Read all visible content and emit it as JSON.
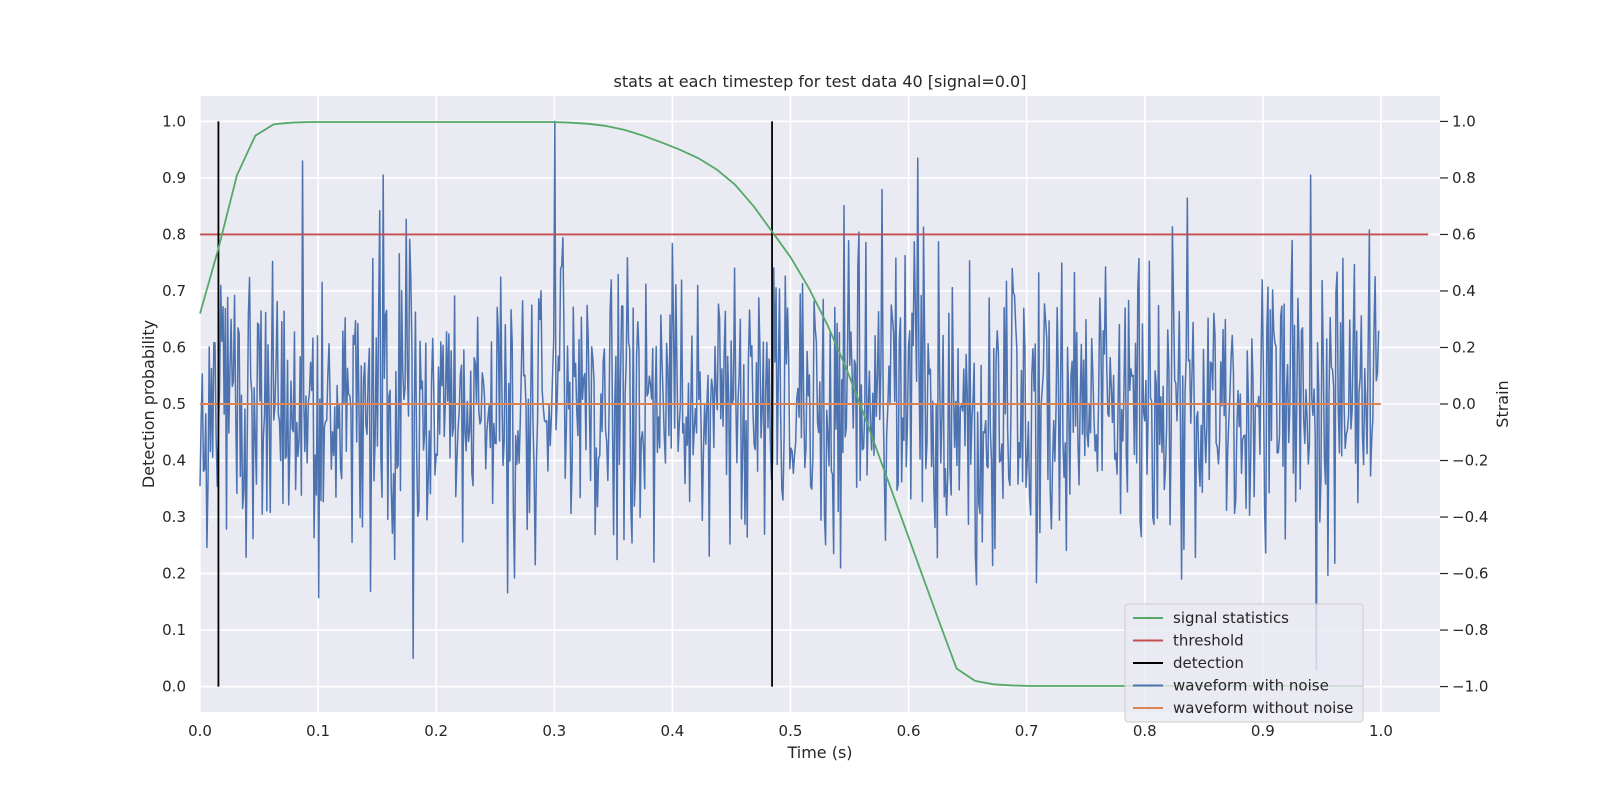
{
  "chart_data": {
    "type": "line",
    "title": "stats at each timestep for test data 40 [signal=0.0]",
    "xlabel": "Time (s)",
    "ylabel_left": "Detection probability",
    "ylabel_right": "Strain",
    "xlim": [
      0.0,
      1.05
    ],
    "ylim_left": [
      -0.045,
      1.045
    ],
    "ylim_right": [
      -1.09,
      1.09
    ],
    "x_ticks": [
      "0.0",
      "0.1",
      "0.2",
      "0.3",
      "0.4",
      "0.5",
      "0.6",
      "0.7",
      "0.8",
      "0.9",
      "1.0"
    ],
    "y_left_ticks": [
      "0.0",
      "0.1",
      "0.2",
      "0.3",
      "0.4",
      "0.5",
      "0.6",
      "0.7",
      "0.8",
      "0.9",
      "1.0"
    ],
    "y_right_ticks": [
      "−1.0",
      "−0.8",
      "−0.6",
      "−0.4",
      "−0.2",
      "0.0",
      "0.2",
      "0.4",
      "0.6",
      "0.8",
      "1.0"
    ],
    "grid": true,
    "legend_position": "lower-right",
    "series": [
      {
        "name": "signal statistics",
        "color": "#55a868",
        "axis": "left",
        "x": [
          0.0,
          0.0156,
          0.0313,
          0.0469,
          0.0625,
          0.0781,
          0.0938,
          0.1094,
          0.125,
          0.1406,
          0.1563,
          0.1719,
          0.1875,
          0.2031,
          0.2188,
          0.2344,
          0.25,
          0.2656,
          0.2813,
          0.2969,
          0.3125,
          0.3281,
          0.3438,
          0.3594,
          0.375,
          0.3906,
          0.4063,
          0.4219,
          0.4375,
          0.4531,
          0.4688,
          0.4844,
          0.5,
          0.5156,
          0.5313,
          0.5469,
          0.5625,
          0.5781,
          0.5938,
          0.6094,
          0.625,
          0.6406,
          0.6563,
          0.6719,
          0.6875,
          0.7031,
          0.7188,
          0.7344,
          0.75,
          0.7656,
          0.7813,
          0.7969,
          0.8125,
          0.8281,
          0.8438,
          0.8594,
          0.875,
          0.8906,
          0.9063,
          0.9219,
          0.9375,
          0.9531,
          0.9688,
          0.9844
        ],
        "values": [
          0.66,
          0.775,
          0.905,
          0.975,
          0.995,
          0.998,
          0.999,
          0.999,
          0.999,
          0.999,
          0.999,
          0.999,
          0.999,
          0.999,
          0.999,
          0.999,
          0.999,
          0.999,
          0.999,
          0.999,
          0.998,
          0.996,
          0.992,
          0.985,
          0.975,
          0.963,
          0.95,
          0.935,
          0.915,
          0.888,
          0.85,
          0.805,
          0.76,
          0.705,
          0.64,
          0.565,
          0.48,
          0.39,
          0.3,
          0.21,
          0.12,
          0.032,
          0.01,
          0.004,
          0.002,
          0.001,
          0.001,
          0.001,
          0.001,
          0.001,
          0.001,
          0.001,
          0.001,
          0.001,
          0.001,
          0.001,
          0.001,
          0.001,
          0.001,
          0.001,
          0.001,
          0.001,
          0.001,
          0.001
        ]
      },
      {
        "name": "threshold",
        "color": "#c44e52",
        "axis": "left",
        "x": [
          0.0,
          1.04
        ],
        "values": [
          0.8,
          0.8
        ]
      },
      {
        "name": "detection",
        "color": "#000000",
        "axis": "left",
        "segments": [
          {
            "x": 0.0156,
            "y": [
              0.0,
              1.0
            ]
          },
          {
            "x": 0.4844,
            "y": [
              0.0,
              1.0
            ]
          }
        ]
      },
      {
        "name": "waveform with noise",
        "color": "#4c72b0",
        "axis": "right",
        "x_range": [
          0.0,
          0.998
        ],
        "points": 1024,
        "std": 0.27,
        "ymin": -0.94,
        "ymax": 1.0,
        "peaks": [
          {
            "x": 0.3,
            "y": 1.0
          },
          {
            "x": 0.608,
            "y": 0.87
          },
          {
            "x": 0.155,
            "y": 0.81
          },
          {
            "x": 0.94,
            "y": 0.81
          },
          {
            "x": 0.18,
            "y": -0.9
          },
          {
            "x": 0.945,
            "y": -0.94
          }
        ]
      },
      {
        "name": "waveform without noise",
        "color": "#dd8452",
        "axis": "right",
        "x": [
          0.0,
          1.0
        ],
        "values": [
          0.0,
          0.0
        ]
      }
    ]
  }
}
